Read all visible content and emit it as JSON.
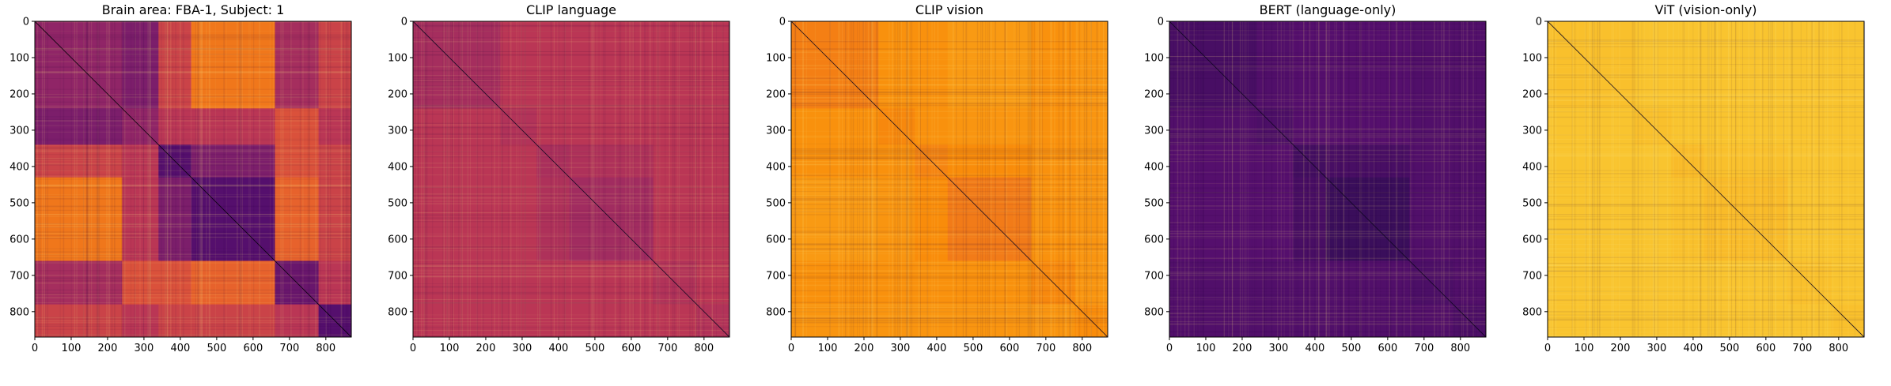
{
  "figure": {
    "panels": [
      {
        "title": "Brain area: FBA-1, Subject: 1",
        "colormap": "inferno",
        "variant": "brain"
      },
      {
        "title": "CLIP language",
        "colormap": "inferno",
        "variant": "clip_language"
      },
      {
        "title": "CLIP vision",
        "colormap": "inferno",
        "variant": "clip_vision"
      },
      {
        "title": "BERT (language-only)",
        "colormap": "inferno",
        "variant": "bert"
      },
      {
        "title": "ViT (vision-only)",
        "colormap": "inferno",
        "variant": "vit"
      }
    ]
  },
  "chart_data": [
    {
      "type": "heatmap",
      "title": "Brain area: FBA-1, Subject: 1",
      "colormap": "inferno",
      "n": 870,
      "xlim": [
        0,
        870
      ],
      "ylim": [
        870,
        0
      ],
      "xticks": [
        "0",
        "100",
        "200",
        "300",
        "400",
        "500",
        "600",
        "700",
        "800"
      ],
      "yticks": [
        "0",
        "100",
        "200",
        "300",
        "400",
        "500",
        "600",
        "700",
        "800"
      ],
      "block_boundaries": [
        0,
        240,
        340,
        430,
        660,
        780,
        870
      ],
      "block_values": [
        [
          0.4,
          0.35,
          0.55,
          0.7,
          0.45,
          0.55
        ],
        [
          0.35,
          0.4,
          0.5,
          0.5,
          0.6,
          0.5
        ],
        [
          0.55,
          0.5,
          0.25,
          0.35,
          0.6,
          0.55
        ],
        [
          0.7,
          0.5,
          0.35,
          0.25,
          0.65,
          0.55
        ],
        [
          0.45,
          0.6,
          0.6,
          0.65,
          0.3,
          0.5
        ],
        [
          0.55,
          0.5,
          0.55,
          0.55,
          0.5,
          0.25
        ]
      ],
      "diagonal_value": 0.0,
      "grid": false
    },
    {
      "type": "heatmap",
      "title": "CLIP language",
      "colormap": "inferno",
      "n": 870,
      "xlim": [
        0,
        870
      ],
      "ylim": [
        870,
        0
      ],
      "xticks": [
        "0",
        "100",
        "200",
        "300",
        "400",
        "500",
        "600",
        "700",
        "800"
      ],
      "yticks": [
        "0",
        "100",
        "200",
        "300",
        "400",
        "500",
        "600",
        "700",
        "800"
      ],
      "block_boundaries": [
        0,
        240,
        340,
        430,
        660,
        780,
        870
      ],
      "block_values": [
        [
          0.45,
          0.5,
          0.5,
          0.5,
          0.5,
          0.5
        ],
        [
          0.5,
          0.48,
          0.5,
          0.5,
          0.5,
          0.5
        ],
        [
          0.5,
          0.5,
          0.46,
          0.47,
          0.5,
          0.5
        ],
        [
          0.5,
          0.5,
          0.47,
          0.44,
          0.5,
          0.5
        ],
        [
          0.5,
          0.5,
          0.5,
          0.5,
          0.48,
          0.5
        ],
        [
          0.5,
          0.5,
          0.5,
          0.5,
          0.5,
          0.48
        ]
      ],
      "diagonal_value": 0.05,
      "grid": false
    },
    {
      "type": "heatmap",
      "title": "CLIP vision",
      "colormap": "inferno",
      "n": 870,
      "xlim": [
        0,
        870
      ],
      "ylim": [
        870,
        0
      ],
      "xticks": [
        "0",
        "100",
        "200",
        "300",
        "400",
        "500",
        "600",
        "700",
        "800"
      ],
      "yticks": [
        "0",
        "100",
        "200",
        "300",
        "400",
        "500",
        "600",
        "700",
        "800"
      ],
      "block_boundaries": [
        0,
        240,
        340,
        430,
        660,
        780,
        870
      ],
      "block_values": [
        [
          0.72,
          0.76,
          0.76,
          0.78,
          0.76,
          0.77
        ],
        [
          0.76,
          0.74,
          0.76,
          0.77,
          0.76,
          0.77
        ],
        [
          0.76,
          0.76,
          0.73,
          0.75,
          0.76,
          0.77
        ],
        [
          0.78,
          0.77,
          0.75,
          0.71,
          0.76,
          0.77
        ],
        [
          0.76,
          0.76,
          0.76,
          0.76,
          0.74,
          0.77
        ],
        [
          0.77,
          0.77,
          0.77,
          0.77,
          0.77,
          0.75
        ]
      ],
      "diagonal_value": 0.05,
      "grid": false
    },
    {
      "type": "heatmap",
      "title": "BERT (language-only)",
      "colormap": "inferno",
      "n": 870,
      "xlim": [
        0,
        870
      ],
      "ylim": [
        870,
        0
      ],
      "xticks": [
        "0",
        "100",
        "200",
        "300",
        "400",
        "500",
        "600",
        "700",
        "800"
      ],
      "yticks": [
        "0",
        "100",
        "200",
        "300",
        "400",
        "500",
        "600",
        "700",
        "800"
      ],
      "block_boundaries": [
        0,
        240,
        340,
        430,
        660,
        780,
        870
      ],
      "block_values": [
        [
          0.22,
          0.24,
          0.25,
          0.25,
          0.24,
          0.24
        ],
        [
          0.24,
          0.23,
          0.25,
          0.25,
          0.24,
          0.24
        ],
        [
          0.25,
          0.25,
          0.21,
          0.22,
          0.24,
          0.24
        ],
        [
          0.25,
          0.25,
          0.22,
          0.19,
          0.24,
          0.24
        ],
        [
          0.24,
          0.24,
          0.24,
          0.24,
          0.23,
          0.24
        ],
        [
          0.24,
          0.24,
          0.24,
          0.24,
          0.24,
          0.23
        ]
      ],
      "diagonal_value": 0.05,
      "grid": false
    },
    {
      "type": "heatmap",
      "title": "ViT (vision-only)",
      "colormap": "inferno",
      "n": 870,
      "xlim": [
        0,
        870
      ],
      "ylim": [
        870,
        0
      ],
      "xticks": [
        "0",
        "100",
        "200",
        "300",
        "400",
        "500",
        "600",
        "700",
        "800"
      ],
      "yticks": [
        "0",
        "100",
        "200",
        "300",
        "400",
        "500",
        "600",
        "700",
        "800"
      ],
      "block_boundaries": [
        0,
        240,
        340,
        430,
        660,
        780,
        870
      ],
      "block_values": [
        [
          0.86,
          0.87,
          0.87,
          0.87,
          0.87,
          0.87
        ],
        [
          0.87,
          0.86,
          0.87,
          0.87,
          0.87,
          0.87
        ],
        [
          0.87,
          0.87,
          0.85,
          0.86,
          0.87,
          0.87
        ],
        [
          0.87,
          0.87,
          0.86,
          0.85,
          0.87,
          0.87
        ],
        [
          0.87,
          0.87,
          0.87,
          0.87,
          0.86,
          0.87
        ],
        [
          0.87,
          0.87,
          0.87,
          0.87,
          0.87,
          0.86
        ]
      ],
      "diagonal_value": 0.05,
      "grid": false
    }
  ]
}
